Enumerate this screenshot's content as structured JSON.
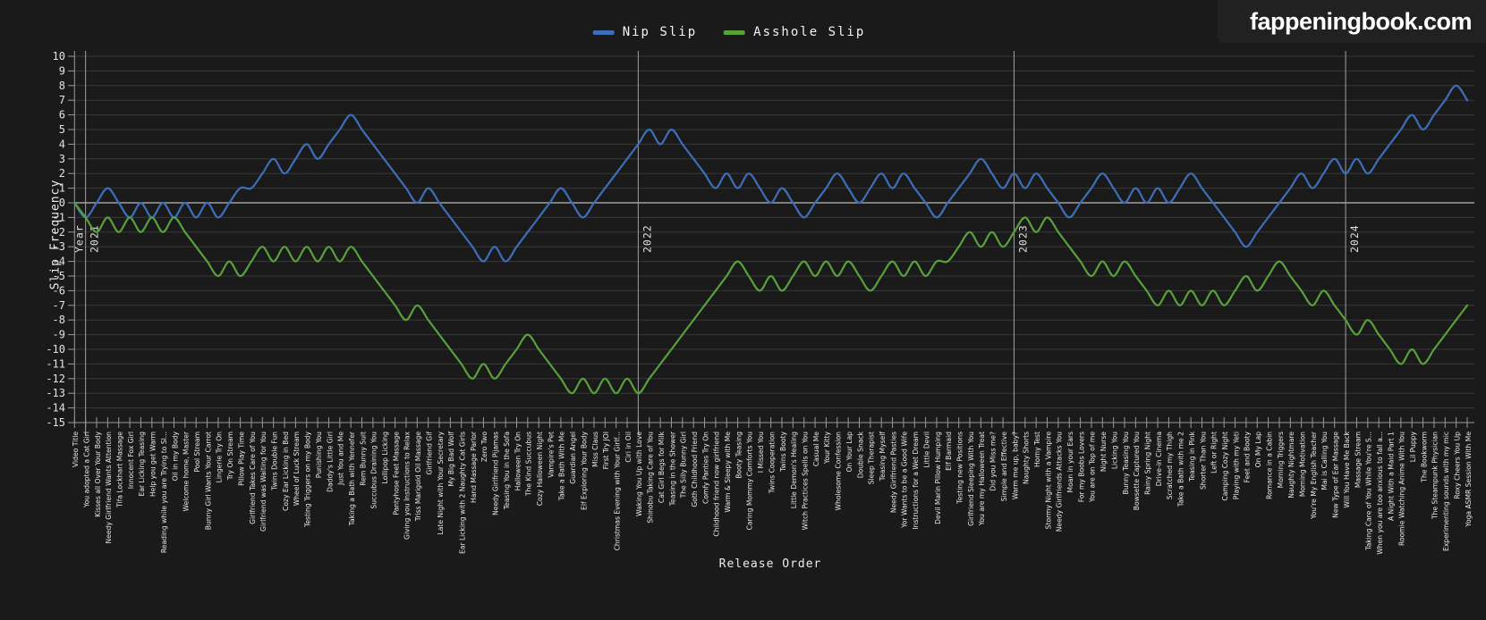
{
  "site": {
    "logo_text": "fappeningbook.com"
  },
  "chart_data": {
    "type": "line",
    "title": "",
    "xlabel": "Release Order",
    "ylabel": "Slip Frequency",
    "ylim": [
      -15,
      10
    ],
    "grid": true,
    "legend_position": "top-center",
    "y_ticks": [
      10,
      9,
      8,
      7,
      6,
      5,
      4,
      3,
      2,
      1,
      0,
      -1,
      -2,
      -3,
      -4,
      -5,
      -6,
      -7,
      -8,
      -9,
      -10,
      -11,
      -12,
      -13,
      -14,
      -15
    ],
    "year_markers": [
      {
        "prefix": "Year",
        "year": "2021",
        "index": 1
      },
      {
        "prefix": "",
        "year": "2022",
        "index": 51
      },
      {
        "prefix": "",
        "year": "2023",
        "index": 85
      },
      {
        "prefix": "",
        "year": "2024",
        "index": 115
      }
    ],
    "categories": [
      "Video Title",
      "You adopted a Cat Girl",
      "Kisses all Over Your Body",
      "Needy Girlfriend Wants Attention",
      "Tifa Lockhart Massage",
      "Innocent Fox Girl",
      "Ear Licking Teasing",
      "Help you get Warm",
      "Reading while you are Trying to Sl...",
      "Oil in my Body",
      "Welcome home, Master",
      "Pool Stream",
      "Bunny Girl Wants Your Carrot",
      "Lingerie Try On",
      "Try On Stream",
      "Pillow Play Time",
      "Girlfriend Takes Care of You",
      "Girlfriend was Waiting for You",
      "Twins Double Fun",
      "Cozy Ear Licking in Bed",
      "Wheel of Luck Stream",
      "Testing Triggers on my Body",
      "Punishing You",
      "Daddy's Little Girl",
      "Just You and Me",
      "Taking a Bath with Yennefer",
      "Rem Bunny Suit",
      "Succubus Draining You",
      "Lollipop Licking",
      "Pantyhose Feet Massage",
      "Giving you Instructions to Relax",
      "Triss Marigold Oil Massage",
      "Girlfriend Gif",
      "Late Night with Your Secretary",
      "My Big Bad Wolf",
      "Ear Licking with 2 Naughty Cat Girls",
      "Hand Massage Parlor",
      "Zero Two",
      "Needy Girlfriend Pijamas",
      "Teasing You in the Sofa",
      "Halloween Try On",
      "The Kind Succubus",
      "Cozy Halloween Night",
      "Vampire's Pet",
      "Take a Bath With Me",
      "Guardian Angel",
      "Elf Exploring Your Body",
      "Miss Claus",
      "First Try JOI",
      "Christmas Evening with Your Girlf...",
      "Ciri in Oil",
      "Waking You Up with Love",
      "Shinobu Taking Care of You",
      "Cat Girl Begs for Milk",
      "Teasing in the Shower",
      "The Silly Bunny Girl",
      "Goth Childhood Friend",
      "Comfy Panties Try On",
      "Childhood friend now girlfriend",
      "Warm & Sleepy with Me",
      "Booty Teasing",
      "Caring Mommy Comforts You",
      "I Missed You",
      "Twins Cooperation",
      "Twins Booty",
      "Little Demon's Healing",
      "Witch Practices Spells on You",
      "Casual Me",
      "Your Kitty",
      "Wholesome Confession",
      "On Your Lap",
      "Double Snack",
      "Sleep Therapist",
      "Teasing Myself",
      "Needy Girlfriend Pasties",
      "Yor Wants to be a Good Wife",
      "Instructions for a Wet Dream",
      "Little Devil",
      "Devil Marin Pillow Humping",
      "Elf Barmaid",
      "Testing new Positions",
      "Girlfriend Sleeping With You",
      "You are my Halloween Treat",
      "Did you Miss me?",
      "Simple and Effective",
      "Warm me up, baby?",
      "Naughty Shorts",
      "Horny Test",
      "Stormy Night with a Vampire",
      "Needy Girlfriends Attacks You",
      "Moan in your Ears",
      "For my Boobs Lovers",
      "You are on Top of me",
      "Night Nurse",
      "Licking You",
      "Bunny Teasing You",
      "Bowsette Captured You",
      "Rainy Spring Night",
      "Drive-in Cinema",
      "Scratched my Thigh",
      "Take a Bath with me 2",
      "Teasing in Pink",
      "Shorter Than You",
      "Left or Right",
      "Camping Cozy Night",
      "Playing with my Yeti",
      "Feet and Booty",
      "On My Lap",
      "Romance in a Cabin",
      "Morning Triggers",
      "Naughty Nightmare",
      "Morning Motivation",
      "You're My English Teacher",
      "Mai is Calling You",
      "New Type of Ear Massage",
      "Will You Have Me Back",
      "Massage Stream",
      "Taking Care of You While You're S...",
      "When you are too anxious to fall a...",
      "A Night With a Maid Part 1",
      "Roomie Watching Anime With You",
      "Lil Puppy",
      "The Bookworm",
      "The Steampunk Physician",
      "Experimenting sounds with my mic",
      "Roxy Cheers You Up",
      "Yoga ASMR Session With Me"
    ],
    "series": [
      {
        "name": "Nip Slip",
        "color": "#3d6eb8",
        "values": [
          0,
          -1,
          0,
          1,
          0,
          -1,
          0,
          -1,
          0,
          -1,
          0,
          -1,
          0,
          -1,
          0,
          1,
          1,
          2,
          3,
          2,
          3,
          4,
          3,
          4,
          5,
          6,
          5,
          4,
          3,
          2,
          1,
          0,
          1,
          0,
          -1,
          -2,
          -3,
          -4,
          -3,
          -4,
          -3,
          -2,
          -1,
          0,
          1,
          0,
          -1,
          0,
          1,
          2,
          3,
          4,
          5,
          4,
          5,
          4,
          3,
          2,
          1,
          2,
          1,
          2,
          1,
          0,
          1,
          0,
          -1,
          0,
          1,
          2,
          1,
          0,
          1,
          2,
          1,
          2,
          1,
          0,
          -1,
          0,
          1,
          2,
          3,
          2,
          1,
          2,
          1,
          2,
          1,
          0,
          -1,
          0,
          1,
          2,
          1,
          0,
          1,
          0,
          1,
          0,
          1,
          2,
          1,
          0,
          -1,
          -2,
          -3,
          -2,
          -1,
          0,
          1,
          2,
          1,
          2,
          3,
          2,
          3,
          2,
          3,
          4,
          5,
          6,
          5,
          6,
          7,
          8,
          7
        ]
      },
      {
        "name": "Asshole Slip",
        "color": "#57a03c",
        "values": [
          0,
          -1,
          -2,
          -1,
          -2,
          -1,
          -2,
          -1,
          -2,
          -1,
          -2,
          -3,
          -4,
          -5,
          -4,
          -5,
          -4,
          -3,
          -4,
          -3,
          -4,
          -3,
          -4,
          -3,
          -4,
          -3,
          -4,
          -5,
          -6,
          -7,
          -8,
          -7,
          -8,
          -9,
          -10,
          -11,
          -12,
          -11,
          -12,
          -11,
          -10,
          -9,
          -10,
          -11,
          -12,
          -13,
          -12,
          -13,
          -12,
          -13,
          -12,
          -13,
          -12,
          -11,
          -10,
          -9,
          -8,
          -7,
          -6,
          -5,
          -4,
          -5,
          -6,
          -5,
          -6,
          -5,
          -4,
          -5,
          -4,
          -5,
          -4,
          -5,
          -6,
          -5,
          -4,
          -5,
          -4,
          -5,
          -4,
          -4,
          -3,
          -2,
          -3,
          -2,
          -3,
          -2,
          -1,
          -2,
          -1,
          -2,
          -3,
          -4,
          -5,
          -4,
          -5,
          -4,
          -5,
          -6,
          -7,
          -6,
          -7,
          -6,
          -7,
          -6,
          -7,
          -6,
          -5,
          -6,
          -5,
          -4,
          -5,
          -6,
          -7,
          -6,
          -7,
          -8,
          -9,
          -8,
          -9,
          -10,
          -11,
          -10,
          -11,
          -10,
          -9,
          -8,
          -7
        ]
      }
    ]
  }
}
